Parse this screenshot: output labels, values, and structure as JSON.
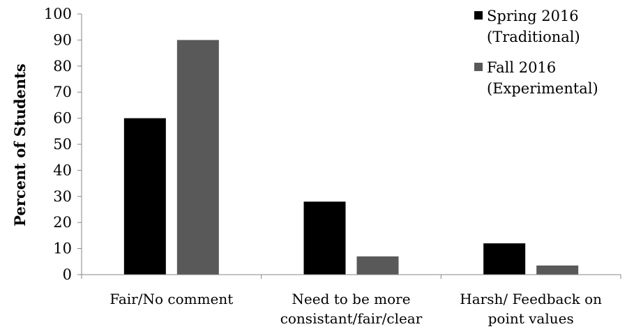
{
  "chart_data": {
    "type": "bar",
    "title": "",
    "xlabel": "",
    "ylabel": "Percent of Students",
    "ylim": [
      0,
      100
    ],
    "yticks": [
      0,
      10,
      20,
      30,
      40,
      50,
      60,
      70,
      80,
      90,
      100
    ],
    "grid": false,
    "legend_position": "top-right",
    "categories": [
      [
        "Fair/No comment"
      ],
      [
        "Need to be more",
        "consistant/fair/clear"
      ],
      [
        "Harsh/ Feedback on",
        "point values"
      ]
    ],
    "series": [
      {
        "name": [
          "Spring 2016",
          "(Traditional)"
        ],
        "color": "#000000",
        "values": [
          60,
          28,
          12
        ]
      },
      {
        "name": [
          "Fall 2016",
          "(Experimental)"
        ],
        "color": "#595959",
        "values": [
          90,
          7,
          3.5
        ]
      }
    ]
  }
}
